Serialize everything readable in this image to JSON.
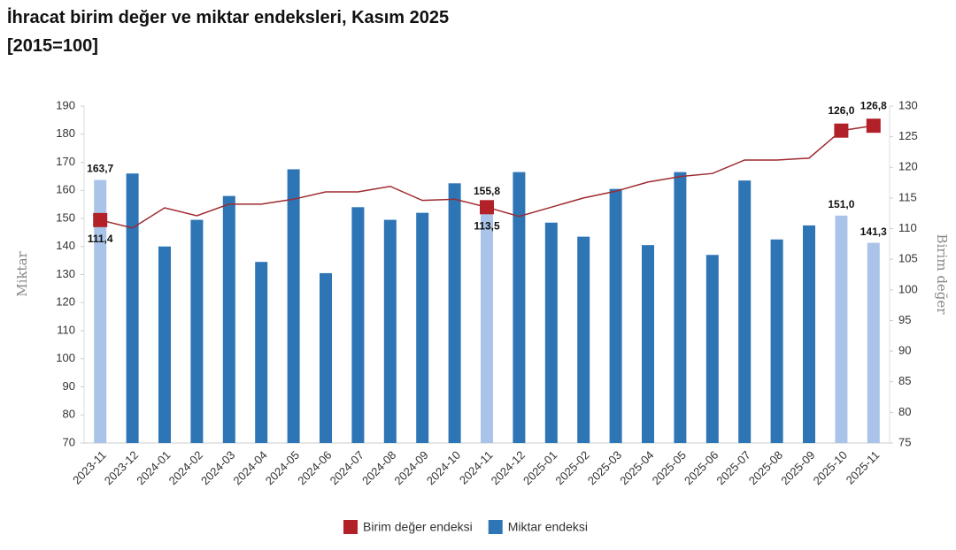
{
  "chart_data": {
    "type": "bar-line",
    "title": "İhracat birim değer ve miktar endeksleri, Kasım 2025",
    "subtitle": "[2015=100]",
    "ylabel": "Miktar",
    "y2label": "Birim değer",
    "categories": [
      "2023-11",
      "2023-12",
      "2024-01",
      "2024-02",
      "2024-03",
      "2024-04",
      "2024-05",
      "2024-06",
      "2024-07",
      "2024-08",
      "2024-09",
      "2024-10",
      "2024-11",
      "2024-12",
      "2025-01",
      "2025-02",
      "2025-03",
      "2025-04",
      "2025-05",
      "2025-06",
      "2025-07",
      "2025-08",
      "2025-09",
      "2025-10",
      "2025-11"
    ],
    "series": [
      {
        "name": "Birim değer endeksi",
        "type": "line",
        "axis": "y2",
        "color": "#b22028",
        "line_color": "#9e2a2f",
        "values": [
          111.4,
          110.1,
          113.4,
          112.1,
          114,
          114,
          114.8,
          116,
          116,
          116.9,
          114.6,
          114.8,
          113.5,
          112,
          113.5,
          115,
          116.1,
          117.6,
          118.5,
          119,
          121.2,
          121.2,
          121.5,
          126.0,
          126.8
        ],
        "value_labels": [
          "111,4",
          null,
          null,
          null,
          null,
          null,
          null,
          null,
          null,
          null,
          null,
          null,
          "113,5",
          null,
          null,
          null,
          null,
          null,
          null,
          null,
          null,
          null,
          null,
          "126,0",
          "126,8"
        ]
      },
      {
        "name": "Miktar endeksi",
        "type": "bar",
        "color": "#2e75b6",
        "highlight_color": "#a9c4e8",
        "values": [
          163.7,
          166,
          140,
          149.5,
          158,
          134.5,
          167.5,
          130.5,
          154,
          149.5,
          152,
          162.5,
          155.8,
          166.5,
          148.5,
          143.5,
          160.5,
          140.5,
          166.5,
          137,
          163.5,
          142.5,
          147.5,
          151.0,
          141.3
        ],
        "value_labels": [
          "163,7",
          null,
          null,
          null,
          null,
          null,
          null,
          null,
          null,
          null,
          null,
          null,
          "155,8",
          null,
          null,
          null,
          null,
          null,
          null,
          null,
          null,
          null,
          null,
          "151,0",
          "141,3"
        ]
      }
    ],
    "ylim": [
      70,
      190
    ],
    "yticks": [
      70,
      80,
      90,
      100,
      110,
      120,
      130,
      140,
      150,
      160,
      170,
      180,
      190
    ],
    "y2lim": [
      75,
      130
    ],
    "y2ticks": [
      75,
      80,
      85,
      90,
      95,
      100,
      105,
      110,
      115,
      120,
      125,
      130
    ],
    "legend": "bottom"
  }
}
